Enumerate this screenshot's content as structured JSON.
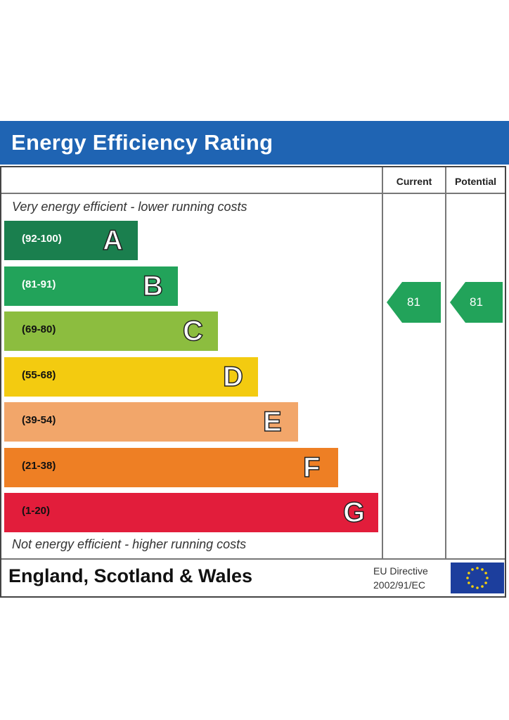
{
  "title": "Energy Efficiency Rating",
  "column_headers": {
    "current": "Current",
    "potential": "Potential"
  },
  "notes": {
    "top": "Very energy efficient - lower running costs",
    "bottom": "Not energy efficient - higher running costs"
  },
  "footer": {
    "region": "England, Scotland & Wales",
    "directive_line1": "EU Directive",
    "directive_line2": "2002/91/EC",
    "flag_icon": "eu-flag-icon"
  },
  "chart_data": {
    "type": "bar",
    "categories": [
      "A",
      "B",
      "C",
      "D",
      "E",
      "F",
      "G"
    ],
    "ranges": [
      "(92-100)",
      "(81-91)",
      "(69-80)",
      "(55-68)",
      "(39-54)",
      "(21-38)",
      "(1-20)"
    ],
    "colors": [
      "#1a7f4e",
      "#22a35a",
      "#8cbd3f",
      "#f3cb10",
      "#f2a66a",
      "#ee7f24",
      "#e21d3b"
    ],
    "range_text_colors": [
      "#ffffff",
      "#ffffff",
      "#111111",
      "#111111",
      "#111111",
      "#111111",
      "#111111"
    ],
    "current": {
      "value": 81,
      "band": "B"
    },
    "potential": {
      "value": 81,
      "band": "B"
    },
    "arrow_color": "#22a35a"
  }
}
